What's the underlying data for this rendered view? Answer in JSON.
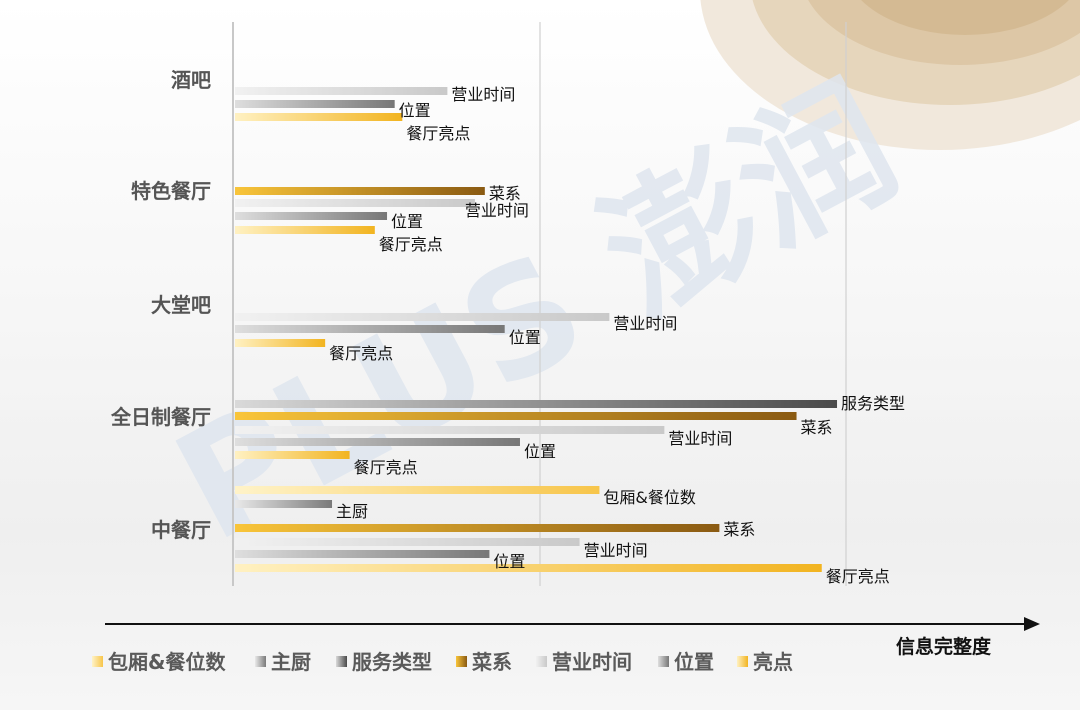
{
  "chart_data": {
    "type": "bar",
    "orientation": "horizontal",
    "value_range": [
      0,
      100
    ],
    "grid": true,
    "x_axis_label": "信息完整度",
    "groups": [
      {
        "name": "酒吧",
        "bars": [
          {
            "series": "营业时间",
            "value": 27.8
          },
          {
            "series": "位置",
            "value": 20.9
          },
          {
            "series": "餐厅亮点",
            "value": 21.9
          }
        ]
      },
      {
        "name": "特色餐厅",
        "bars": [
          {
            "series": "菜系",
            "value": 32.7
          },
          {
            "series": "营业时间",
            "value": 31.4
          },
          {
            "series": "位置",
            "value": 19.9
          },
          {
            "series": "餐厅亮点",
            "value": 18.3
          }
        ]
      },
      {
        "name": "大堂吧",
        "bars": [
          {
            "series": "营业时间",
            "value": 49.0
          },
          {
            "series": "位置",
            "value": 35.3
          },
          {
            "series": "餐厅亮点",
            "value": 11.8
          }
        ]
      },
      {
        "name": "全日制餐厅",
        "bars": [
          {
            "series": "服务类型",
            "value": 78.8
          },
          {
            "series": "菜系",
            "value": 73.5
          },
          {
            "series": "营业时间",
            "value": 56.2
          },
          {
            "series": "位置",
            "value": 37.3
          },
          {
            "series": "餐厅亮点",
            "value": 15.0
          }
        ]
      },
      {
        "name": "中餐厅",
        "bars": [
          {
            "series": "包厢&餐位数",
            "value": 47.7
          },
          {
            "series": "主厨",
            "value": 12.7
          },
          {
            "series": "菜系",
            "value": 63.4
          },
          {
            "series": "营业时间",
            "value": 45.1
          },
          {
            "series": "位置",
            "value": 33.3
          },
          {
            "series": "餐厅亮点",
            "value": 76.8
          }
        ]
      }
    ],
    "legend": [
      {
        "label": "包厢&餐位数",
        "series": "包厢&餐位数"
      },
      {
        "label": "主厨",
        "series": "主厨"
      },
      {
        "label": "服务类型",
        "series": "服务类型"
      },
      {
        "label": "菜系",
        "series": "菜系"
      },
      {
        "label": "营业时间",
        "series": "营业时间"
      },
      {
        "label": "位置",
        "series": "位置"
      },
      {
        "label": "亮点",
        "series": "餐厅亮点"
      }
    ],
    "series_colors": {
      "包厢&餐位数": {
        "from": "#fff3c8",
        "to": "#f7c54a"
      },
      "主厨": {
        "from": "#e9e9e9",
        "to": "#7a7a7a"
      },
      "服务类型": {
        "from": "#d9d9d9",
        "to": "#4a4a4a"
      },
      "菜系": {
        "from": "#f9c53a",
        "to": "#8a5a12"
      },
      "营业时间": {
        "from": "#f1f1f1",
        "to": "#c9c9c9"
      },
      "位置": {
        "from": "#dedede",
        "to": "#777777"
      },
      "餐厅亮点": {
        "from": "#fff1c2",
        "to": "#f2b420"
      }
    }
  },
  "watermark": {
    "text": "PLUS 澎润"
  }
}
